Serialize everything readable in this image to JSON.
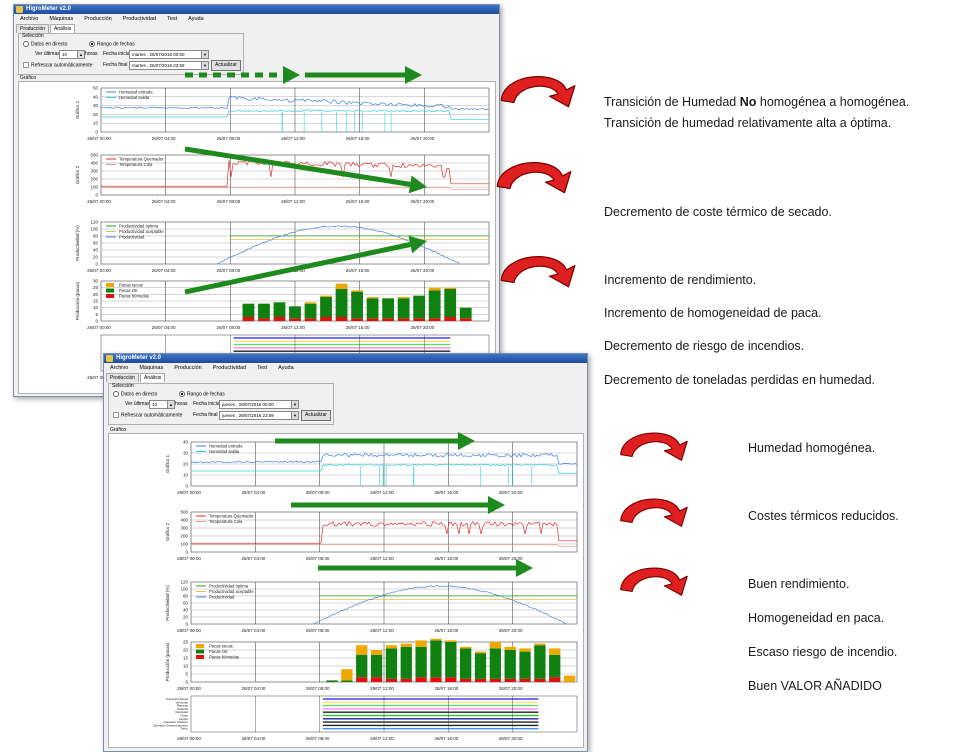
{
  "window1": {
    "title": "HigroMeter v2.0",
    "menu": [
      "Archivo",
      "Máquinas",
      "Producción",
      "Productividad",
      "Test",
      "Ayuda"
    ],
    "tabs": [
      "Producción",
      "Análisis"
    ],
    "selection": {
      "legend": "Selección",
      "live": "Datos en directo",
      "range": "Rango de fechas",
      "last_label": "Ver últimas",
      "last_value": "10",
      "hours": "horas",
      "auto_refresh": "Refrescar automáticamente",
      "start_label": "Fecha inicial",
      "start_value": "martes , 26/07/2016 00:00",
      "end_label": "Fecha final",
      "end_value": "martes , 26/07/2016 23:59",
      "update": "Actualizar"
    },
    "graph_label": "Gráfico",
    "time_ticks": [
      "26/07 00:00",
      "26/07 04:00",
      "26/07 08:00",
      "26/07 12:00",
      "26/07 16:00",
      "26/07 20:00"
    ],
    "charts": [
      {
        "ylabel": "Gráfico 1",
        "ticks": [
          "50",
          "40",
          "30",
          "20",
          "10",
          "0"
        ],
        "legend": [
          "Humedad entrada",
          "Humedad salida"
        ]
      },
      {
        "ylabel": "Gráfico 2",
        "ticks": [
          "500",
          "400",
          "300",
          "200",
          "100",
          "0"
        ],
        "legend": [
          "Temperatura Quemador",
          "Temperatura Cola"
        ]
      },
      {
        "ylabel": "Productividad (%)",
        "ticks": [
          "120",
          "100",
          "80",
          "60",
          "40",
          "20",
          "0"
        ],
        "legend": [
          "Productividad óptima",
          "Productividad aceptable",
          "Productividad"
        ]
      },
      {
        "ylabel": "Producción (pacas)",
        "ticks": [
          "30",
          "25",
          "20",
          "15",
          "10",
          "5",
          "0"
        ],
        "legend": [
          "Pacas secas",
          "Pacas OK",
          "Pacas húmedas"
        ]
      }
    ]
  },
  "window2": {
    "title": "HigroMeter v2.0",
    "menu": [
      "Archivo",
      "Máquinas",
      "Producción",
      "Productividad",
      "Test",
      "Ayuda"
    ],
    "tabs": [
      "Producción",
      "Análisis"
    ],
    "selection": {
      "legend": "Selección",
      "live": "Datos en directo",
      "range": "Rango de fechas",
      "last_label": "Ver últimas",
      "last_value": "10",
      "hours": "horas",
      "auto_refresh": "Refrescar automáticamente",
      "start_label": "Fecha inicial",
      "start_value": "jueves , 28/07/2016 00:00",
      "end_label": "Fecha final",
      "end_value": "jueves , 28/07/2016 23:59",
      "update": "Actualizar"
    },
    "graph_label": "Gráfico",
    "time_ticks": [
      "28/07 00:00",
      "28/07 04:00",
      "28/07 08:00",
      "28/07 12:00",
      "28/07 16:00",
      "28/07 20:00"
    ],
    "charts": [
      {
        "ylabel": "Gráfico 1",
        "ticks": [
          "40",
          "30",
          "20",
          "10",
          "0"
        ],
        "legend": [
          "Humedad entrada",
          "Humedad salida"
        ]
      },
      {
        "ylabel": "Gráfico 2",
        "ticks": [
          "500",
          "400",
          "300",
          "200",
          "100",
          "0"
        ],
        "legend": [
          "Temperatura Quemador",
          "Temperatura Cola"
        ]
      },
      {
        "ylabel": "Productividad (%)",
        "ticks": [
          "120",
          "100",
          "80",
          "60",
          "40",
          "20",
          "0"
        ],
        "legend": [
          "Productividad óptima",
          "Productividad aceptable",
          "Productividad"
        ]
      },
      {
        "ylabel": "Producción (pacas)",
        "ticks": [
          "25",
          "20",
          "15",
          "10",
          "5",
          "0"
        ],
        "legend": [
          "Pacas secas",
          "Pacas OK",
          "Pacas húmedas"
        ]
      }
    ],
    "status_labels": [
      "Transmitir Pacas",
      "Ventosas",
      "Rampas",
      "Cabezal",
      "Velocidad",
      "Clase",
      "Cepillo",
      "Operador Peldano",
      "Operador Desembarcador",
      "Turno"
    ]
  },
  "bars_window1": {
    "yellow": [
      0,
      0,
      0,
      0,
      0,
      0,
      0,
      0,
      0,
      0,
      0,
      0,
      0,
      1,
      1,
      4,
      1,
      1,
      0,
      1,
      0,
      2,
      1,
      0,
      0
    ],
    "green": [
      0,
      0,
      0,
      0,
      0,
      0,
      0,
      0,
      0,
      10,
      11,
      11,
      9,
      11,
      15,
      21,
      20,
      15,
      15,
      15,
      17,
      21,
      21,
      8,
      0
    ],
    "red": [
      0,
      0,
      0,
      0,
      0,
      0,
      0,
      0,
      0,
      3,
      2,
      3,
      2,
      2,
      3,
      3,
      2,
      2,
      2,
      2,
      2,
      2,
      3,
      2,
      0
    ]
  },
  "bars_window2": {
    "yellow": [
      0,
      0,
      0,
      0,
      0,
      0,
      0,
      0,
      0,
      0,
      7,
      6,
      3,
      2,
      2,
      4,
      1,
      1,
      1,
      1,
      4,
      2,
      2,
      1,
      4,
      4
    ],
    "green": [
      0,
      0,
      0,
      0,
      0,
      0,
      0,
      0,
      0,
      1,
      1,
      14,
      14,
      19,
      20,
      19,
      23,
      22,
      19,
      16,
      19,
      18,
      17,
      21,
      14,
      0
    ],
    "red": [
      0,
      0,
      0,
      0,
      0,
      0,
      0,
      0,
      0,
      0,
      0,
      3,
      3,
      2,
      2,
      3,
      3,
      3,
      2,
      2,
      2,
      2,
      2,
      2,
      3,
      0
    ]
  },
  "colors": {
    "green_arrow": "#1e8a1e",
    "red_curl": "#e02020",
    "bar_yellow": "#f0a800",
    "bar_green": "#108010",
    "bar_red": "#e01010"
  },
  "notes_before": [
    {
      "id": "n1a",
      "parts": [
        "Transición de Humedad ",
        "No",
        " homogénea a homogénea."
      ]
    },
    {
      "id": "n1b",
      "text": "Transición de humedad relativamente alta a óptima."
    },
    {
      "id": "n2",
      "text": "Decremento de coste térmico de secado."
    },
    {
      "id": "n3a",
      "text": "Incremento de rendimiento."
    },
    {
      "id": "n3b",
      "text": "Incremento de homogeneidad de paca."
    },
    {
      "id": "n3c",
      "text": "Decremento de riesgo de incendios."
    },
    {
      "id": "n3d",
      "text": "Decremento de toneladas perdidas en humedad."
    }
  ],
  "notes_after": [
    {
      "id": "m1",
      "text": "Humedad homogénea."
    },
    {
      "id": "m2",
      "text": "Costes térmicos reducidos."
    },
    {
      "id": "m3a",
      "text": "Buen rendimiento."
    },
    {
      "id": "m3b",
      "text": "Homogeneidad en paca."
    },
    {
      "id": "m3c",
      "text": "Escaso riesgo de incendio."
    },
    {
      "id": "m3d",
      "text": "Buen VALOR AÑADIDO"
    }
  ]
}
